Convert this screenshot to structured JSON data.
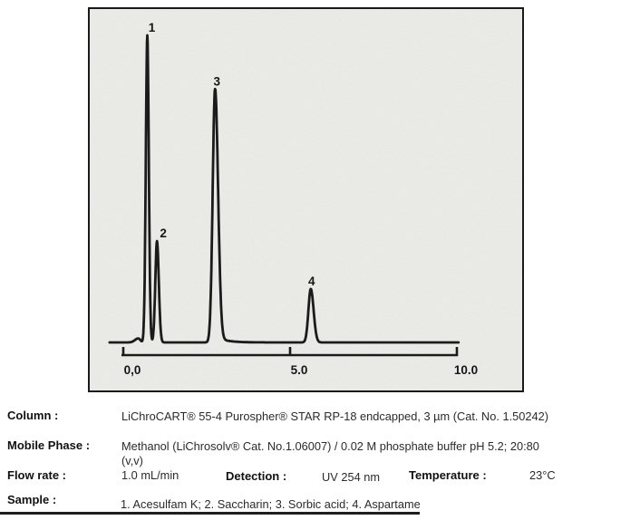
{
  "colors": {
    "paper": "#ecece9",
    "ink": "#1b1b1b",
    "text": "#2b2b2b"
  },
  "chart_data": {
    "type": "line",
    "title": "",
    "xlabel": "",
    "ylabel": "",
    "xlim": [
      0,
      10
    ],
    "grid": false,
    "legend": "none",
    "x_ticks": [
      {
        "t": 0,
        "label": "0,0"
      },
      {
        "t": 5,
        "label": "5.0"
      },
      {
        "t": 10,
        "label": "10.0"
      }
    ],
    "trace_t_range": [
      -0.41,
      10.05
    ],
    "peaks": [
      {
        "label": "1",
        "compound": "Acesulfam K",
        "retention_min": 0.72,
        "rel_height": 1.0,
        "sigma_left": 0.045,
        "sigma_right": 0.045,
        "label_dx": 5
      },
      {
        "label": "2",
        "compound": "Saccharin",
        "retention_min": 1.01,
        "rel_height": 0.33,
        "sigma_left": 0.05,
        "sigma_right": 0.055,
        "label_dx": 7
      },
      {
        "label": "3",
        "compound": "Sorbic acid",
        "retention_min": 2.75,
        "rel_height": 0.825,
        "sigma_left": 0.07,
        "sigma_right": 0.09,
        "tail_h": 0.02,
        "tail_decay": 0.3,
        "label_dx": 2
      },
      {
        "label": "4",
        "compound": "Aspartame",
        "retention_min": 5.62,
        "rel_height": 0.174,
        "sigma_left": 0.07,
        "sigma_right": 0.085,
        "label_dx": 1
      }
    ],
    "injection_artifact": {
      "retention_min": 0.45,
      "rel_height": 0.013,
      "sigma_left": 0.1,
      "sigma_right": 0.06
    }
  },
  "specs": {
    "column": {
      "label": "Column :",
      "value": "LiChroCART® 55-4 Purospher® STAR RP-18 endcapped, 3 µm  (Cat. No. 1.50242)"
    },
    "mobile_phase": {
      "label": "Mobile Phase :",
      "value_line1": "Methanol (LiChrosolv® Cat. No.1.06007) / 0.02 M phosphate buffer pH 5.2; 20:80",
      "value_line2": "(v,v)"
    },
    "flow_rate": {
      "label": "Flow rate :",
      "value": "1.0 mL/min"
    },
    "detection": {
      "label": "Detection :",
      "value": "UV 254 nm"
    },
    "temperature": {
      "label": "Temperature :",
      "value": "23°C"
    },
    "sample": {
      "label": "Sample :",
      "value": "1. Acesulfam K; 2. Saccharin; 3. Sorbic acid; 4. Aspartame"
    }
  }
}
